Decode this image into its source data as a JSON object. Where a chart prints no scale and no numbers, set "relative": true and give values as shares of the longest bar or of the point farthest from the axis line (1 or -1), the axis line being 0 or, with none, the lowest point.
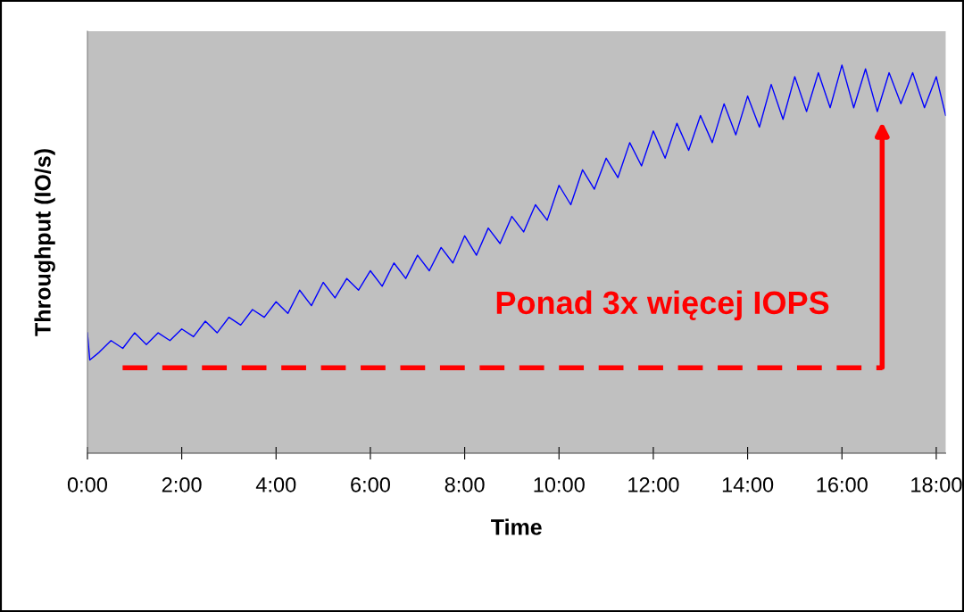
{
  "chart_data": {
    "type": "line",
    "relative": true,
    "xlabel": "Time",
    "ylabel": "Throughput (IO/s)",
    "x": [
      0,
      0.05,
      0.25,
      0.5,
      0.75,
      1.0,
      1.25,
      1.5,
      1.75,
      2.0,
      2.25,
      2.5,
      2.75,
      3.0,
      3.25,
      3.5,
      3.75,
      4.0,
      4.25,
      4.5,
      4.75,
      5.0,
      5.25,
      5.5,
      5.75,
      6.0,
      6.25,
      6.5,
      6.75,
      7.0,
      7.25,
      7.5,
      7.75,
      8.0,
      8.25,
      8.5,
      8.75,
      9.0,
      9.25,
      9.5,
      9.75,
      10.0,
      10.25,
      10.5,
      10.75,
      11.0,
      11.25,
      11.5,
      11.75,
      12.0,
      12.25,
      12.5,
      12.75,
      13.0,
      13.25,
      13.5,
      13.75,
      14.0,
      14.25,
      14.5,
      14.75,
      15.0,
      15.25,
      15.5,
      15.75,
      16.0,
      16.25,
      16.5,
      16.75,
      17.0,
      17.25,
      17.5,
      17.75,
      18.0,
      18.2
    ],
    "series": [
      {
        "color": "#0000ff",
        "values": [
          0.31,
          0.24,
          0.26,
          0.29,
          0.27,
          0.31,
          0.28,
          0.31,
          0.29,
          0.32,
          0.3,
          0.34,
          0.31,
          0.35,
          0.33,
          0.37,
          0.35,
          0.39,
          0.36,
          0.42,
          0.38,
          0.44,
          0.4,
          0.45,
          0.42,
          0.47,
          0.43,
          0.49,
          0.45,
          0.51,
          0.47,
          0.53,
          0.49,
          0.56,
          0.51,
          0.58,
          0.54,
          0.61,
          0.57,
          0.64,
          0.6,
          0.69,
          0.64,
          0.73,
          0.68,
          0.76,
          0.71,
          0.8,
          0.74,
          0.83,
          0.76,
          0.85,
          0.78,
          0.87,
          0.8,
          0.9,
          0.82,
          0.92,
          0.84,
          0.95,
          0.86,
          0.97,
          0.88,
          0.98,
          0.89,
          1.0,
          0.89,
          0.99,
          0.88,
          0.98,
          0.9,
          0.98,
          0.89,
          0.97,
          0.87
        ]
      }
    ],
    "xlim": [
      0,
      18.2
    ],
    "xticks": [
      {
        "value": 0,
        "label": "0:00"
      },
      {
        "value": 2,
        "label": "2:00"
      },
      {
        "value": 4,
        "label": "4:00"
      },
      {
        "value": 6,
        "label": "6:00"
      },
      {
        "value": 8,
        "label": "8:00"
      },
      {
        "value": 10,
        "label": "10:00"
      },
      {
        "value": 12,
        "label": "12:00"
      },
      {
        "value": 14,
        "label": "14:00"
      },
      {
        "value": 16,
        "label": "16:00"
      },
      {
        "value": 18,
        "label": "18:00"
      }
    ],
    "ref_lines": [
      {
        "axis": "y",
        "value": 0.22,
        "color": "#ff0000",
        "line_style": "dashed"
      }
    ],
    "annotations": [
      "Ponad 3x więcej IOPS"
    ],
    "grid": false,
    "legend": false,
    "marker": "none",
    "line_style": "solid"
  }
}
